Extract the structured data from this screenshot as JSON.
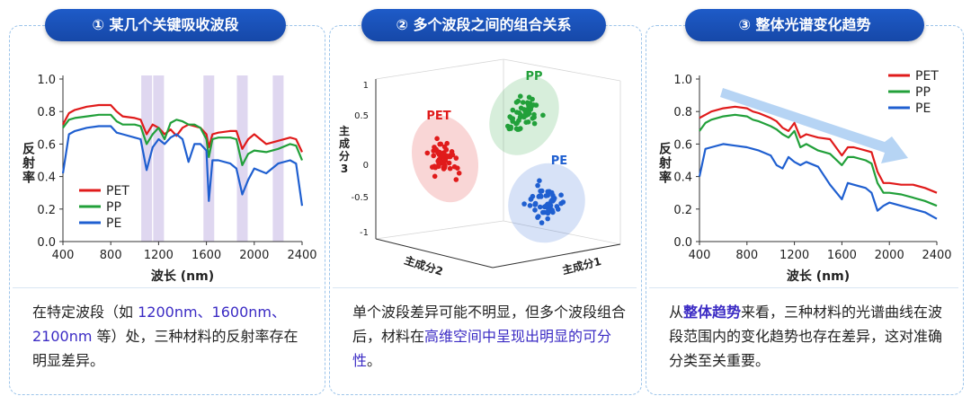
{
  "panels": [
    {
      "title": "① 某几个关键吸收波段"
    },
    {
      "title": "② 多个波段之间的组合关系"
    },
    {
      "title": "③ 整体光谱变化趋势"
    }
  ],
  "panel1": {
    "ylabel": "反射率",
    "xlabel": "波长 (nm)",
    "desc": {
      "pre": "在特定波段（如 ",
      "hl": "1200nm、1600nm、2100nm",
      "post": " 等）处，三种材料的反射率存在明显差异。"
    }
  },
  "panel2": {
    "axis_z": "主成分3",
    "axis_x": "主成分1",
    "axis_y": "主成分2",
    "desc": {
      "pre": "单个波段差异可能不明显，但多个波段组合后，材料在",
      "hl": "高维空间中呈现出明显的可分性",
      "post": "。"
    }
  },
  "panel3": {
    "ylabel": "反射率",
    "xlabel": "波长 (nm)",
    "desc": {
      "pre": "从",
      "hl": "整体趋势",
      "post": "来看，三种材料的光谱曲线在波段范围内的变化趋势也存在差异，这对准确分类至关重要。"
    }
  },
  "colors": {
    "PET": "#e01b1b",
    "PP": "#22a03a",
    "PE": "#1f5fd0",
    "band": "#b9a6de",
    "arrow": "#a9cdf2"
  },
  "chart_data": [
    {
      "type": "line",
      "title": "",
      "xlabel": "波长 (nm)",
      "ylabel": "反射率",
      "xlim": [
        400,
        2400
      ],
      "ylim": [
        0,
        1
      ],
      "xticks": [
        "400",
        "800",
        "1200",
        "1600",
        "2000",
        "2400"
      ],
      "yticks": [
        "0.0",
        "0.2",
        "0.4",
        "0.6",
        "0.8",
        "1.0"
      ],
      "legend_position": "bottom-left",
      "bands": [
        1100,
        1200,
        1620,
        1900,
        2200
      ],
      "series": [
        {
          "name": "PET",
          "x": [
            400,
            450,
            500,
            600,
            700,
            800,
            850,
            900,
            1000,
            1050,
            1100,
            1150,
            1200,
            1250,
            1300,
            1350,
            1400,
            1450,
            1500,
            1550,
            1600,
            1620,
            1650,
            1700,
            1800,
            1850,
            1900,
            1950,
            2000,
            2100,
            2200,
            2300,
            2350,
            2400
          ],
          "y": [
            0.72,
            0.79,
            0.81,
            0.83,
            0.84,
            0.84,
            0.8,
            0.77,
            0.76,
            0.75,
            0.66,
            0.72,
            0.7,
            0.66,
            0.69,
            0.65,
            0.7,
            0.72,
            0.71,
            0.7,
            0.66,
            0.58,
            0.66,
            0.67,
            0.68,
            0.68,
            0.57,
            0.63,
            0.66,
            0.6,
            0.62,
            0.64,
            0.63,
            0.55
          ]
        },
        {
          "name": "PP",
          "x": [
            400,
            450,
            500,
            600,
            700,
            800,
            850,
            900,
            1000,
            1050,
            1100,
            1150,
            1200,
            1250,
            1300,
            1350,
            1400,
            1450,
            1500,
            1550,
            1600,
            1620,
            1650,
            1700,
            1800,
            1850,
            1900,
            1950,
            2000,
            2100,
            2200,
            2300,
            2350,
            2400
          ],
          "y": [
            0.7,
            0.75,
            0.76,
            0.77,
            0.78,
            0.78,
            0.74,
            0.72,
            0.72,
            0.71,
            0.6,
            0.66,
            0.7,
            0.63,
            0.73,
            0.75,
            0.74,
            0.72,
            0.72,
            0.7,
            0.63,
            0.52,
            0.63,
            0.64,
            0.64,
            0.63,
            0.47,
            0.54,
            0.56,
            0.55,
            0.57,
            0.6,
            0.59,
            0.5
          ]
        },
        {
          "name": "PE",
          "x": [
            400,
            450,
            500,
            600,
            700,
            800,
            850,
            900,
            1000,
            1050,
            1100,
            1150,
            1200,
            1250,
            1300,
            1350,
            1400,
            1450,
            1500,
            1550,
            1600,
            1620,
            1650,
            1700,
            1800,
            1850,
            1900,
            1950,
            2000,
            2100,
            2200,
            2300,
            2350,
            2400
          ],
          "y": [
            0.42,
            0.66,
            0.68,
            0.7,
            0.71,
            0.71,
            0.67,
            0.66,
            0.64,
            0.63,
            0.44,
            0.58,
            0.63,
            0.6,
            0.64,
            0.66,
            0.63,
            0.49,
            0.6,
            0.6,
            0.56,
            0.25,
            0.5,
            0.5,
            0.48,
            0.45,
            0.29,
            0.38,
            0.45,
            0.42,
            0.48,
            0.5,
            0.48,
            0.22
          ]
        }
      ]
    },
    {
      "type": "scatter",
      "title": "",
      "xlabel": "主成分1",
      "ylabel": "主成分2",
      "zlabel": "主成分3",
      "zticks": [
        "1",
        "0.5",
        "0",
        "-0.5",
        "-1"
      ],
      "clusters": [
        {
          "name": "PET",
          "center": [
            -0.6,
            -0.1,
            0.0
          ],
          "count": 55
        },
        {
          "name": "PP",
          "center": [
            0.1,
            0.6,
            0.5
          ],
          "count": 55
        },
        {
          "name": "PE",
          "center": [
            0.6,
            -0.5,
            -0.5
          ],
          "count": 55
        }
      ]
    },
    {
      "type": "line",
      "title": "",
      "xlabel": "波长 (nm)",
      "ylabel": "反射率",
      "xlim": [
        400,
        2400
      ],
      "ylim": [
        0,
        1
      ],
      "xticks": [
        "400",
        "800",
        "1200",
        "1600",
        "2000",
        "2400"
      ],
      "yticks": [
        "0.0",
        "0.2",
        "0.4",
        "0.6",
        "0.8",
        "1.0"
      ],
      "legend_position": "top-right",
      "series": [
        {
          "name": "PET",
          "x": [
            400,
            450,
            500,
            600,
            700,
            800,
            850,
            900,
            1000,
            1050,
            1100,
            1150,
            1200,
            1250,
            1300,
            1400,
            1500,
            1600,
            1650,
            1700,
            1800,
            1850,
            1900,
            1950,
            2000,
            2100,
            2200,
            2300,
            2400
          ],
          "y": [
            0.76,
            0.78,
            0.8,
            0.82,
            0.83,
            0.82,
            0.8,
            0.79,
            0.76,
            0.74,
            0.7,
            0.68,
            0.73,
            0.64,
            0.66,
            0.64,
            0.63,
            0.53,
            0.58,
            0.58,
            0.56,
            0.55,
            0.43,
            0.36,
            0.36,
            0.35,
            0.35,
            0.33,
            0.3
          ]
        },
        {
          "name": "PP",
          "x": [
            400,
            450,
            500,
            600,
            700,
            800,
            850,
            900,
            1000,
            1050,
            1100,
            1150,
            1200,
            1250,
            1300,
            1400,
            1500,
            1600,
            1650,
            1700,
            1800,
            1850,
            1900,
            1950,
            2000,
            2100,
            2200,
            2300,
            2400
          ],
          "y": [
            0.68,
            0.73,
            0.75,
            0.77,
            0.78,
            0.77,
            0.75,
            0.74,
            0.71,
            0.69,
            0.66,
            0.64,
            0.68,
            0.58,
            0.6,
            0.56,
            0.54,
            0.47,
            0.52,
            0.52,
            0.5,
            0.48,
            0.36,
            0.3,
            0.3,
            0.29,
            0.27,
            0.25,
            0.22
          ]
        },
        {
          "name": "PE",
          "x": [
            400,
            450,
            500,
            600,
            700,
            800,
            850,
            900,
            1000,
            1050,
            1100,
            1150,
            1200,
            1250,
            1300,
            1400,
            1500,
            1600,
            1650,
            1700,
            1800,
            1850,
            1900,
            1950,
            2000,
            2100,
            2200,
            2300,
            2400
          ],
          "y": [
            0.4,
            0.57,
            0.58,
            0.6,
            0.59,
            0.58,
            0.57,
            0.56,
            0.53,
            0.47,
            0.45,
            0.52,
            0.49,
            0.47,
            0.49,
            0.46,
            0.35,
            0.26,
            0.36,
            0.35,
            0.33,
            0.3,
            0.19,
            0.22,
            0.24,
            0.22,
            0.2,
            0.18,
            0.14
          ]
        }
      ]
    }
  ]
}
